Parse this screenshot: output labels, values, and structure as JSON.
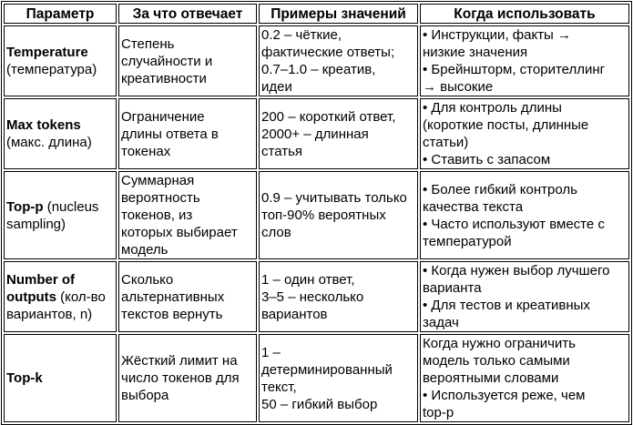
{
  "headers": [
    "Параметр",
    "За что отвечает",
    "Примеры значений",
    "Когда использовать"
  ],
  "rows": [
    {
      "name": "Temperature",
      "sub": "\n(температура)",
      "purpose": "Степень\nслучайности и\nкреативности",
      "examples": "0.2 – чёткие,\nфактические ответы;\n0.7–1.0 – креатив,\nидеи",
      "when": "• Инструкции, факты →\nнизкие значения\n• Брейншторм, сторителлинг\n→ высокие"
    },
    {
      "name": "Max tokens",
      "sub": "\n(макс. длина)",
      "purpose": "Ограничение\nдлины ответа в\nтокенах",
      "examples": "200 – короткий ответ,\n2000+ – длинная\nстатья",
      "when": "• Для контроль длины\n(короткие посты, длинные\nстатьи)\n• Ставить с запасом"
    },
    {
      "name": "Top-p",
      "sub": " (nucleus\nsampling)",
      "purpose": "Суммарная\nвероятность\nтокенов, из\nкоторых выбирает\nмодель",
      "examples": "0.9 – учитывать только\nтоп-90% вероятных\nслов",
      "when": "• Более гибкий контроль\nкачества текста\n• Часто используют вместе с\nтемпературой"
    },
    {
      "name": "Number of\noutputs",
      "sub": " (кол-во\nвариантов, n)",
      "purpose": "Сколько\nальтернативных\nтекстов вернуть",
      "examples": "1 – один ответ,\n3–5 – несколько\nвариантов",
      "when": "• Когда нужен выбор лучшего\nварианта\n• Для тестов и креативных\nзадач"
    },
    {
      "name": "Top-k",
      "sub": "",
      "purpose": "Жёсткий лимит на\nчисло токенов для\nвыбора",
      "examples": "1 –\nдетерминированный\nтекст,\n50 – гибкий выбор",
      "when": "Когда нужно ограничить\nмодель только самыми\nвероятными словами\n• Используется реже, чем\ntop-p"
    }
  ]
}
